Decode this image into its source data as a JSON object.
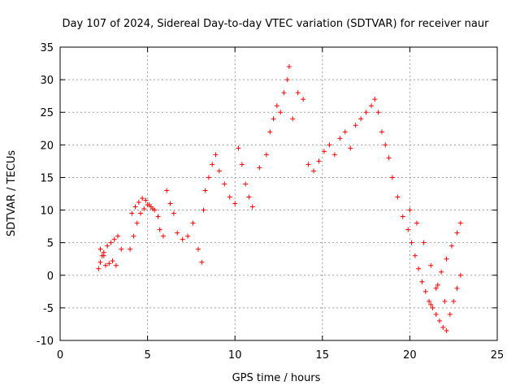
{
  "chart_data": {
    "type": "scatter",
    "title": "Day 107 of 2024, Sidereal Day-to-day VTEC variation (SDTVAR) for receiver naur",
    "xlabel": "GPS time / hours",
    "ylabel": "SDTVAR / TECUs",
    "xlim": [
      0,
      25
    ],
    "ylim": [
      -10,
      35
    ],
    "xticks": [
      0,
      5,
      10,
      15,
      20,
      25
    ],
    "yticks": [
      -10,
      -5,
      0,
      5,
      10,
      15,
      20,
      25,
      30,
      35
    ],
    "grid": true,
    "marker": "+",
    "color": "#ff0000",
    "series": [
      {
        "name": "SDTVAR",
        "x": [
          2.2,
          2.3,
          2.4,
          2.5,
          2.6,
          2.8,
          3.0,
          3.2,
          2.3,
          2.5,
          2.7,
          2.9,
          3.1,
          3.3,
          3.5,
          4.0,
          4.2,
          4.4,
          4.6,
          4.8,
          5.0,
          5.2,
          5.4,
          5.6,
          4.1,
          4.3,
          4.5,
          4.7,
          4.9,
          5.1,
          5.3,
          5.7,
          5.9,
          6.1,
          6.3,
          6.5,
          6.7,
          7.0,
          7.3,
          7.6,
          7.9,
          8.1,
          8.2,
          8.3,
          8.5,
          8.7,
          8.9,
          9.1,
          9.4,
          9.7,
          10.0,
          10.2,
          10.4,
          10.6,
          10.8,
          11.0,
          11.4,
          11.8,
          12.0,
          12.2,
          12.4,
          12.6,
          12.8,
          13.0,
          13.1,
          13.3,
          13.6,
          13.9,
          14.2,
          14.5,
          14.8,
          15.1,
          15.4,
          15.7,
          16.0,
          16.3,
          16.6,
          16.9,
          17.2,
          17.5,
          17.8,
          18.0,
          18.2,
          18.4,
          18.6,
          18.8,
          19.0,
          19.3,
          19.6,
          19.9,
          20.1,
          20.3,
          20.5,
          20.7,
          20.9,
          21.1,
          21.3,
          21.5,
          21.7,
          21.9,
          22.1,
          22.3,
          22.5,
          22.7,
          22.9,
          21.2,
          21.5,
          21.8,
          22.1,
          22.4,
          22.7,
          22.9,
          20.0,
          20.4,
          20.8,
          21.2,
          21.6,
          22.0
        ],
        "y": [
          1.0,
          2.0,
          3.0,
          3.5,
          1.5,
          1.8,
          2.2,
          1.5,
          4.0,
          3.0,
          4.5,
          5.0,
          5.5,
          6.0,
          4.0,
          4.0,
          6.0,
          8.0,
          9.5,
          10.2,
          10.8,
          10.5,
          10.0,
          9.0,
          9.5,
          10.5,
          11.2,
          11.8,
          11.5,
          10.8,
          10.2,
          7.0,
          6.0,
          13.0,
          11.0,
          9.5,
          6.5,
          5.5,
          6.0,
          8.0,
          4.0,
          2.0,
          10.0,
          13.0,
          15.0,
          17.0,
          18.5,
          16.0,
          14.0,
          12.0,
          11.0,
          19.5,
          17.0,
          14.0,
          12.0,
          10.5,
          16.5,
          18.5,
          22.0,
          24.0,
          26.0,
          25.0,
          28.0,
          30.0,
          32.0,
          24.0,
          28.0,
          27.0,
          17.0,
          16.0,
          17.5,
          19.0,
          20.0,
          18.5,
          21.0,
          22.0,
          19.5,
          23.0,
          24.0,
          25.0,
          26.0,
          27.0,
          25.0,
          22.0,
          20.0,
          18.0,
          15.0,
          12.0,
          9.0,
          7.0,
          5.0,
          3.0,
          1.0,
          -1.0,
          -2.5,
          -4.0,
          -5.0,
          -6.0,
          -7.0,
          -8.0,
          -8.5,
          -6.0,
          -4.0,
          -2.0,
          0.0,
          -4.5,
          -2.0,
          0.5,
          2.5,
          4.5,
          6.5,
          8.0,
          10.0,
          8.0,
          5.0,
          1.5,
          -1.5,
          -4.0
        ]
      }
    ]
  }
}
